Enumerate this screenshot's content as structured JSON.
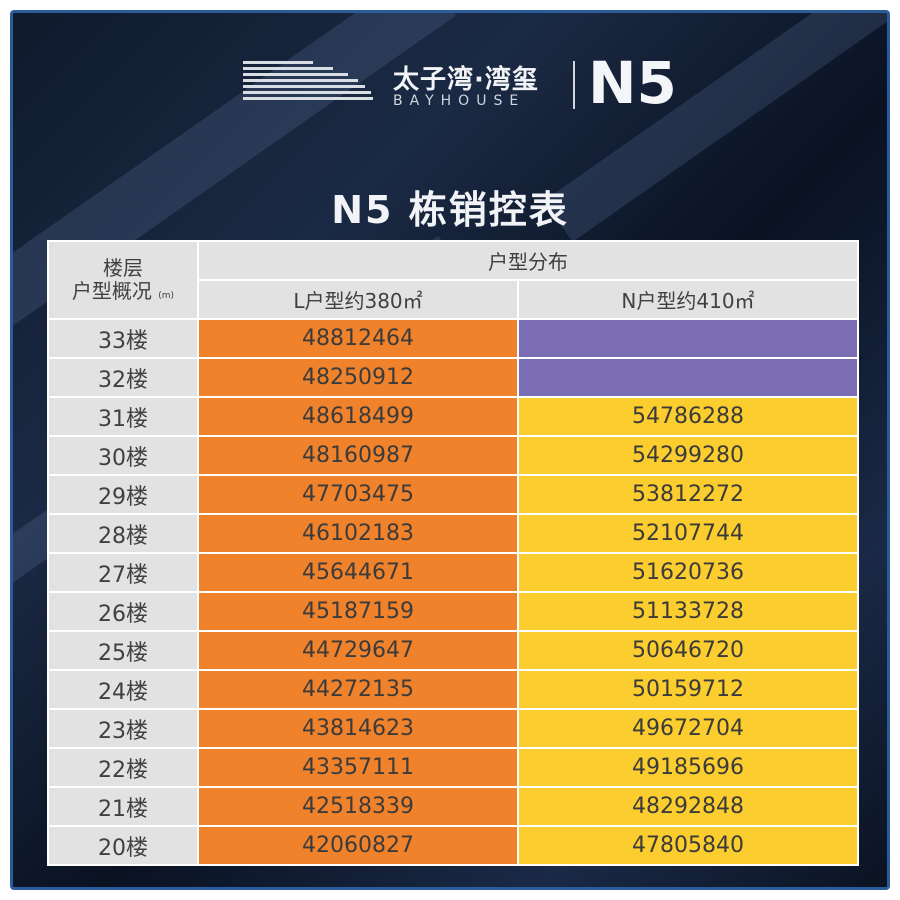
{
  "brand": {
    "name_cn": "太子湾·湾玺",
    "name_en": "BAYHOUSE",
    "building": "N5"
  },
  "title": "N5 栋销控表",
  "table": {
    "header_floor_line1": "楼层",
    "header_floor_line2": "户型概况",
    "header_floor_unit": "(m)",
    "header_group": "户型分布",
    "col_l": "L户型约380㎡",
    "col_n": "N户型约410㎡",
    "rows": [
      {
        "floor": "33楼",
        "l": "48812464",
        "n": ""
      },
      {
        "floor": "32楼",
        "l": "48250912",
        "n": ""
      },
      {
        "floor": "31楼",
        "l": "48618499",
        "n": "54786288"
      },
      {
        "floor": "30楼",
        "l": "48160987",
        "n": "54299280"
      },
      {
        "floor": "29楼",
        "l": "47703475",
        "n": "53812272"
      },
      {
        "floor": "28楼",
        "l": "46102183",
        "n": "52107744"
      },
      {
        "floor": "27楼",
        "l": "45644671",
        "n": "51620736"
      },
      {
        "floor": "26楼",
        "l": "45187159",
        "n": "51133728"
      },
      {
        "floor": "25楼",
        "l": "44729647",
        "n": "50646720"
      },
      {
        "floor": "24楼",
        "l": "44272135",
        "n": "50159712"
      },
      {
        "floor": "23楼",
        "l": "43814623",
        "n": "49672704"
      },
      {
        "floor": "22楼",
        "l": "43357111",
        "n": "49185696"
      },
      {
        "floor": "21楼",
        "l": "42518339",
        "n": "48292848"
      },
      {
        "floor": "20楼",
        "l": "42060827",
        "n": "47805840"
      }
    ]
  },
  "colors": {
    "l_cell": "#f0822b",
    "n_cell": "#fbcd2e",
    "sold_cell": "#7b6db3",
    "header": "#e2e2e2"
  }
}
